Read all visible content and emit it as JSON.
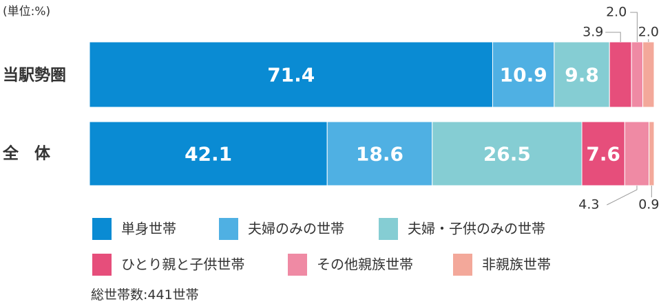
{
  "unit_note": "(単位:%)",
  "footnote": "総世帯数:441世帯",
  "colors": {
    "単身世帯": "#0a8bd3",
    "夫婦のみの世帯": "#4fb0e3",
    "夫婦・子供のみの世帯": "#85cdd3",
    "ひとり親と子供世帯": "#e64e7b",
    "その他親族世帯": "#ef8aa4",
    "非親族世帯": "#f3a89a"
  },
  "chart_data": {
    "type": "bar",
    "orientation": "horizontal",
    "stacked": true,
    "categories": [
      "当駅勢圏",
      "全　体"
    ],
    "series": [
      {
        "name": "単身世帯",
        "values": [
          71.4,
          42.1
        ],
        "labels": [
          "71.4",
          "42.1"
        ]
      },
      {
        "name": "夫婦のみの世帯",
        "values": [
          10.9,
          18.6
        ],
        "labels": [
          "10.9",
          "18.6"
        ]
      },
      {
        "name": "夫婦・子供のみの世帯",
        "values": [
          9.8,
          26.5
        ],
        "labels": [
          "9.8",
          "26.5"
        ]
      },
      {
        "name": "ひとり親と子供世帯",
        "values": [
          3.9,
          7.6
        ],
        "labels": [
          "3.9",
          "7.6"
        ]
      },
      {
        "name": "その他親族世帯",
        "values": [
          2.0,
          4.3
        ],
        "labels": [
          "2.0",
          "4.3"
        ]
      },
      {
        "name": "非親族世帯",
        "values": [
          2.0,
          0.9
        ],
        "labels": [
          "2.0",
          "0.9"
        ]
      }
    ],
    "xlim": [
      0,
      100
    ],
    "legend_placement": "bottom",
    "grid": false
  }
}
